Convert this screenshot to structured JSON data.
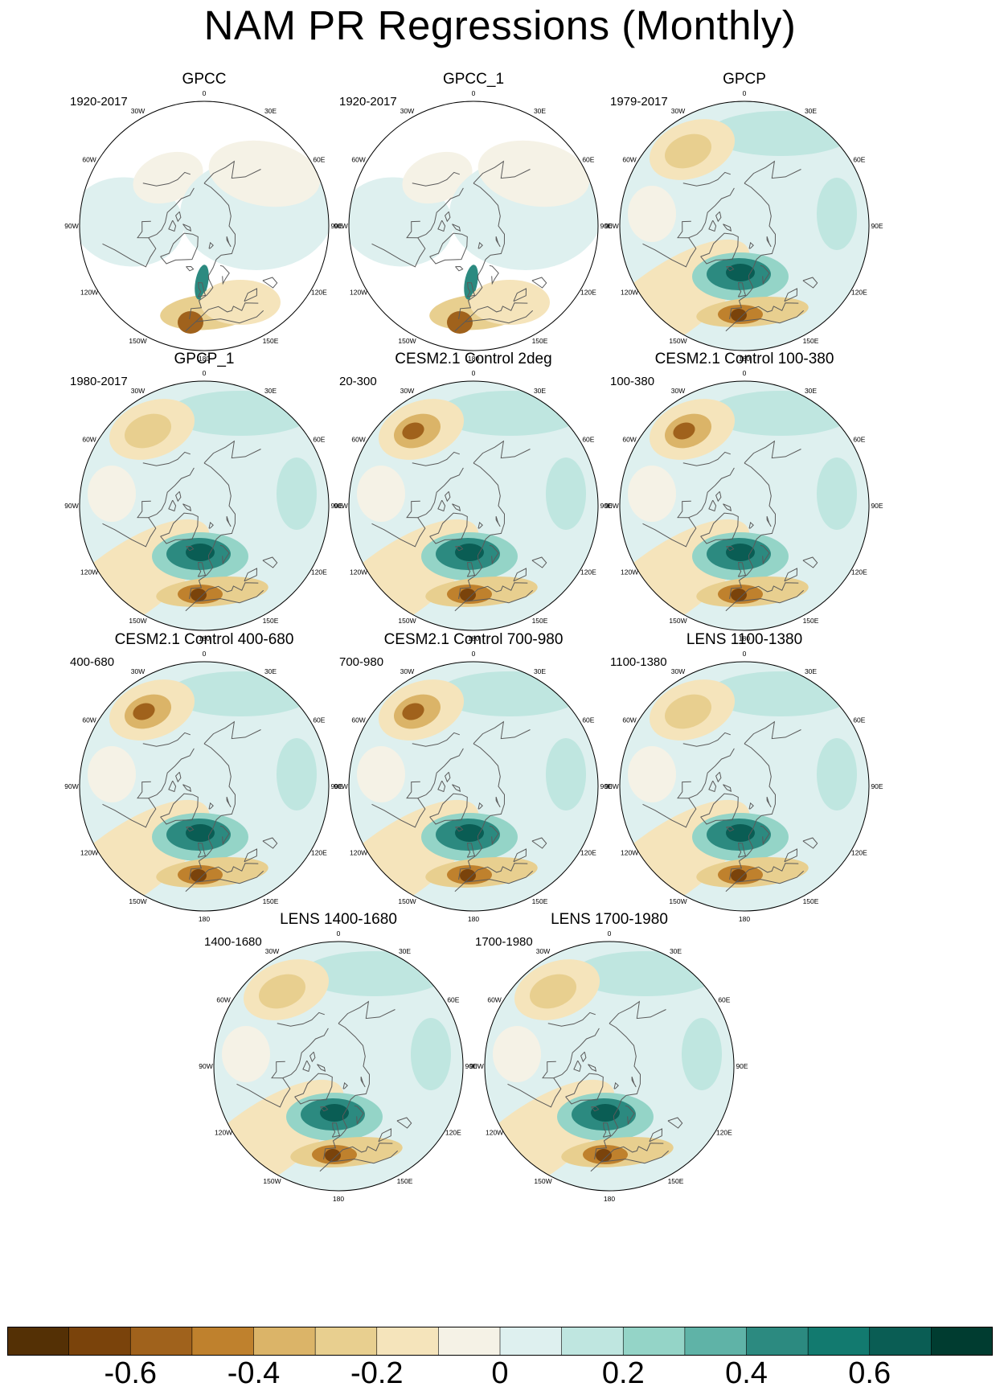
{
  "figure_title": "NAM PR Regressions (Monthly)",
  "longitude_labels": [
    "180",
    "150E",
    "120E",
    "90E",
    "60E",
    "30E",
    "0",
    "30W",
    "60W",
    "90W",
    "120W",
    "150W"
  ],
  "panels": [
    {
      "title": "GPCC",
      "period": "1920-2017",
      "coverage": "land-only",
      "pattern_strength": 0.55
    },
    {
      "title": "GPCC_1",
      "period": "1920-2017",
      "coverage": "land-only",
      "pattern_strength": 0.55
    },
    {
      "title": "GPCP",
      "period": "1979-2017",
      "coverage": "global",
      "pattern_strength": 0.8
    },
    {
      "title": "GPCP_1",
      "period": "1980-2017",
      "coverage": "global",
      "pattern_strength": 0.8
    },
    {
      "title": "CESM2.1 Control 2deg",
      "period": "20-300",
      "coverage": "global",
      "pattern_strength": 0.9
    },
    {
      "title": "CESM2.1 Control 100-380",
      "period": "100-380",
      "coverage": "global",
      "pattern_strength": 1.0
    },
    {
      "title": "CESM2.1 Control 400-680",
      "period": "400-680",
      "coverage": "global",
      "pattern_strength": 1.0
    },
    {
      "title": "CESM2.1 Control 700-980",
      "period": "700-980",
      "coverage": "global",
      "pattern_strength": 0.95
    },
    {
      "title": "LENS 1100-1380",
      "period": "1100-1380",
      "coverage": "global",
      "pattern_strength": 0.85
    },
    {
      "title": "LENS 1400-1680",
      "period": "1400-1680",
      "coverage": "global",
      "pattern_strength": 0.85
    },
    {
      "title": "LENS 1700-1980",
      "period": "1700-1980",
      "coverage": "global",
      "pattern_strength": 0.85
    }
  ],
  "colorbar": {
    "colors": [
      "#543005",
      "#7a430b",
      "#a0621c",
      "#bf812d",
      "#dbb468",
      "#e8cf8f",
      "#f5e4bb",
      "#f5f2e6",
      "#def0ef",
      "#bfe6e0",
      "#94d4c7",
      "#5fb3a7",
      "#2c8a80",
      "#127a6f",
      "#0a5d54",
      "#003c30"
    ],
    "labels": [
      "-0.6",
      "-0.4",
      "-0.2",
      "0",
      "0.2",
      "0.4",
      "0.6"
    ],
    "label_values": [
      -0.6,
      -0.4,
      -0.2,
      0,
      0.2,
      0.4,
      0.6
    ],
    "min": -0.8,
    "max": 0.8
  }
}
